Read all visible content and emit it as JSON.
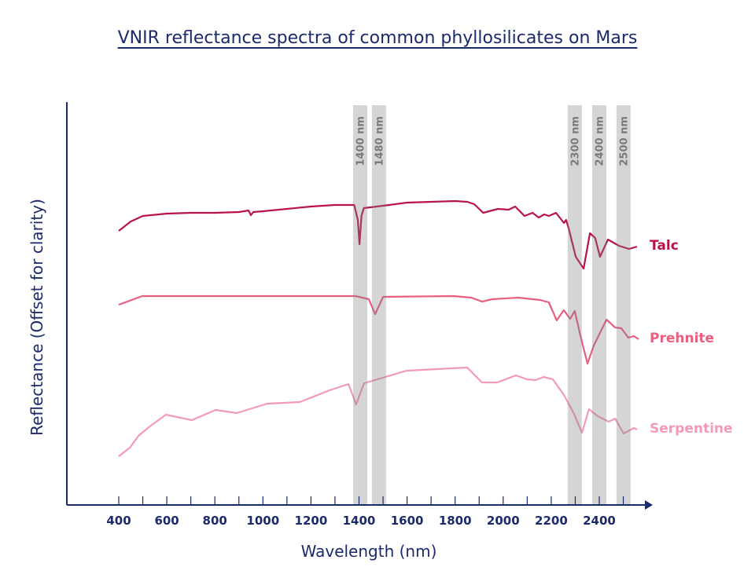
{
  "chart_data": {
    "type": "line",
    "title": "VNIR reflectance spectra of common phyllosilicates on Mars",
    "xlabel": "Wavelength (nm)",
    "ylabel": "Reflectance (Offset for clarity)",
    "xlim": [
      200,
      2600
    ],
    "ylim": [
      0,
      100
    ],
    "xticks": [
      400,
      600,
      800,
      1000,
      1200,
      1400,
      1600,
      1800,
      2000,
      2200,
      2400
    ],
    "minor_xticks_step": 100,
    "grid": false,
    "legend": "inline-right",
    "bands": [
      {
        "label": "1400 nm",
        "center": 1405
      },
      {
        "label": "1480 nm",
        "center": 1483
      },
      {
        "label": "2300 nm",
        "center": 2298
      },
      {
        "label": "2400 nm",
        "center": 2400
      },
      {
        "label": "2500 nm",
        "center": 2501
      }
    ],
    "band_color": "#c8c8c8",
    "series": [
      {
        "name": "Talc",
        "color": "#b8144a",
        "x": [
          400,
          450,
          500,
          600,
          700,
          800,
          900,
          940,
          950,
          960,
          1000,
          1100,
          1200,
          1300,
          1380,
          1395,
          1402,
          1410,
          1420,
          1500,
          1600,
          1700,
          1800,
          1850,
          1880,
          1917,
          1978,
          2023,
          2050,
          2089,
          2122,
          2148,
          2171,
          2190,
          2220,
          2253,
          2262,
          2272,
          2302,
          2335,
          2361,
          2383,
          2403,
          2436,
          2482,
          2524,
          2557
        ],
        "y": [
          69.8,
          72.2,
          73.6,
          74.2,
          74.4,
          74.4,
          74.6,
          75,
          73.8,
          74.6,
          74.8,
          75.4,
          76,
          76.4,
          76.4,
          72.6,
          66.4,
          73.6,
          75.6,
          76.2,
          77,
          77.2,
          77.4,
          77.2,
          76.6,
          74.4,
          75.4,
          75.2,
          76,
          73.6,
          74.4,
          73.2,
          74,
          73.6,
          74.4,
          71.8,
          72.6,
          70.6,
          63.2,
          60.2,
          69.2,
          68,
          63.2,
          67.6,
          66,
          65.2,
          65.8
        ]
      },
      {
        "name": "Prehnite",
        "color": "#e85f80",
        "x": [
          400,
          498,
          704,
          1385,
          1441,
          1467,
          1500,
          1795,
          1867,
          1912,
          1955,
          2063,
          2154,
          2190,
          2223,
          2252,
          2279,
          2298,
          2321,
          2351,
          2377,
          2430,
          2466,
          2492,
          2521,
          2544,
          2564
        ],
        "y": [
          51,
          53.2,
          53.2,
          53.2,
          52.4,
          48.6,
          53,
          53.2,
          52.8,
          51.8,
          52.4,
          52.8,
          52.2,
          51.6,
          47,
          49.6,
          47.4,
          49.4,
          43.2,
          36,
          40.6,
          47.2,
          45.2,
          45,
          42.6,
          43,
          42.2
        ]
      },
      {
        "name": "Serpentine",
        "color": "#f39ab9",
        "x": [
          400,
          446,
          482,
          525,
          596,
          704,
          803,
          891,
          1018,
          1153,
          1277,
          1356,
          1388,
          1421,
          1598,
          1850,
          1912,
          1975,
          2053,
          2099,
          2135,
          2168,
          2207,
          2253,
          2295,
          2328,
          2357,
          2394,
          2439,
          2466,
          2501,
          2544,
          2557
        ],
        "y": [
          12.4,
          14.6,
          17.6,
          19.8,
          23,
          21.6,
          24.2,
          23.4,
          25.8,
          26.2,
          29.2,
          30.8,
          25.6,
          31,
          34.2,
          35,
          31.2,
          31.2,
          33,
          32,
          31.8,
          32.6,
          32,
          28,
          23.2,
          18.4,
          24.4,
          22.6,
          21.2,
          22,
          18.2,
          19.6,
          19.2
        ]
      }
    ],
    "axis_color": "#1b2a6b"
  }
}
